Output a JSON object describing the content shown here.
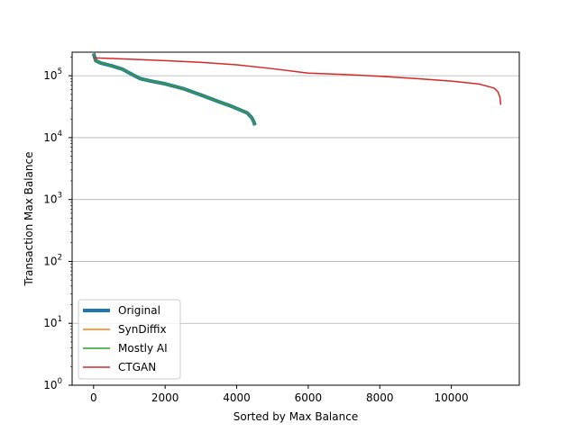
{
  "chart_data": {
    "type": "line",
    "title": "",
    "xlabel": "Sorted by Max Balance",
    "ylabel": "Transaction Max Balance",
    "xlim": [
      -600,
      11900
    ],
    "ylim": [
      1,
      240000
    ],
    "yscale": "log",
    "grid": "y-major",
    "legend_position": "lower-left",
    "x_ticks": [
      0,
      2000,
      4000,
      6000,
      8000,
      10000
    ],
    "x_tick_labels": [
      "0",
      "2000",
      "4000",
      "6000",
      "8000",
      "10000"
    ],
    "y_ticks": [
      1,
      10,
      100,
      1000,
      10000,
      100000
    ],
    "y_tick_labels": [
      {
        "base": "10",
        "exp": "0"
      },
      {
        "base": "10",
        "exp": "1"
      },
      {
        "base": "10",
        "exp": "2"
      },
      {
        "base": "10",
        "exp": "3"
      },
      {
        "base": "10",
        "exp": "4"
      },
      {
        "base": "10",
        "exp": "5"
      }
    ],
    "series": [
      {
        "name": "Original",
        "color": "#1f77b4",
        "width": 4,
        "points": [
          [
            0,
            230000
          ],
          [
            30,
            200000
          ],
          [
            60,
            175000
          ],
          [
            200,
            160000
          ],
          [
            500,
            145000
          ],
          [
            800,
            128000
          ],
          [
            1100,
            103000
          ],
          [
            1300,
            90000
          ],
          [
            1600,
            82000
          ],
          [
            2000,
            74000
          ],
          [
            2500,
            62000
          ],
          [
            3000,
            49000
          ],
          [
            3500,
            38000
          ],
          [
            3800,
            33000
          ],
          [
            4100,
            28000
          ],
          [
            4300,
            25000
          ],
          [
            4420,
            21000
          ],
          [
            4480,
            18000
          ],
          [
            4510,
            15800
          ]
        ]
      },
      {
        "name": "SynDiffix",
        "color": "#ff7f0e",
        "width": 1.5,
        "points": [
          [
            0,
            230000
          ],
          [
            30,
            200000
          ],
          [
            60,
            175000
          ],
          [
            200,
            160000
          ],
          [
            500,
            145000
          ],
          [
            800,
            128000
          ],
          [
            1100,
            103000
          ],
          [
            1300,
            90000
          ],
          [
            1600,
            82000
          ],
          [
            2000,
            74000
          ],
          [
            2500,
            62000
          ],
          [
            3000,
            49000
          ],
          [
            3500,
            38000
          ],
          [
            3800,
            33000
          ],
          [
            4100,
            28000
          ],
          [
            4300,
            25000
          ],
          [
            4420,
            21000
          ],
          [
            4480,
            18000
          ],
          [
            4510,
            15800
          ]
        ]
      },
      {
        "name": "Mostly AI",
        "color": "#2ca02c",
        "width": 1.5,
        "points": [
          [
            0,
            230000
          ],
          [
            30,
            200000
          ],
          [
            60,
            175000
          ],
          [
            200,
            160000
          ],
          [
            500,
            145000
          ],
          [
            800,
            128000
          ],
          [
            1100,
            103000
          ],
          [
            1300,
            90000
          ],
          [
            1600,
            82000
          ],
          [
            2000,
            74000
          ],
          [
            2500,
            62000
          ],
          [
            3000,
            49000
          ],
          [
            3500,
            38000
          ],
          [
            3800,
            33000
          ],
          [
            4100,
            28000
          ],
          [
            4300,
            25000
          ],
          [
            4420,
            21000
          ],
          [
            4480,
            18000
          ],
          [
            4510,
            15800
          ]
        ]
      },
      {
        "name": "CTGAN",
        "color": "#d62728",
        "width": 1.5,
        "points": [
          [
            0,
            195000
          ],
          [
            1000,
            185000
          ],
          [
            2000,
            175000
          ],
          [
            3000,
            165000
          ],
          [
            4000,
            150000
          ],
          [
            5000,
            130000
          ],
          [
            6000,
            110000
          ],
          [
            7000,
            105000
          ],
          [
            8000,
            98000
          ],
          [
            9000,
            90000
          ],
          [
            10000,
            82000
          ],
          [
            10800,
            73000
          ],
          [
            11200,
            63000
          ],
          [
            11300,
            55000
          ],
          [
            11360,
            45000
          ],
          [
            11380,
            34000
          ]
        ]
      }
    ]
  }
}
